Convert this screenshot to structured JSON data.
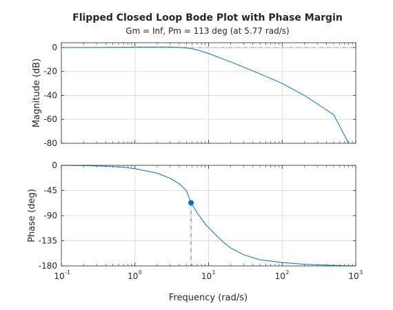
{
  "chart_data": {
    "type": "line",
    "title": "Flipped Closed Loop Bode Plot with Phase Margin",
    "subtitle": "Gm = Inf,  Pm = 113 deg (at 5.77 rad/s)",
    "xlabel": "Frequency (rad/s)",
    "xscale": "log",
    "xlim": [
      0.1,
      1000
    ],
    "x_tick_bases": [
      "10",
      "10",
      "10",
      "10",
      "10"
    ],
    "x_tick_exponents": [
      "-1",
      "0",
      "1",
      "2",
      "3"
    ],
    "x_tick_values": [
      0.1,
      1,
      10,
      100,
      1000
    ],
    "grid": true,
    "line_color": "#0072BD",
    "margin_line_color": "#666666",
    "panels": [
      {
        "name": "magnitude",
        "ylabel": "Magnitude (dB)",
        "ylim": [
          -80,
          4
        ],
        "y_ticks": [
          0,
          -20,
          -40,
          -60,
          -80
        ],
        "y_tick_labels": [
          "0",
          "-20",
          "-40",
          "-60",
          "-80"
        ],
        "series": {
          "x": [
            0.1,
            0.3,
            0.6,
            1,
            2,
            3,
            4,
            5,
            5.77,
            7,
            10,
            20,
            50,
            100,
            200,
            500,
            800
          ],
          "y": [
            0,
            0.05,
            0.2,
            0.3,
            0.4,
            0.35,
            0.1,
            -0.4,
            -0.9,
            -2.0,
            -5.0,
            -12.0,
            -22.0,
            -30.0,
            -40.0,
            -56.0,
            -80.0
          ]
        },
        "reference_line_y": 0
      },
      {
        "name": "phase",
        "ylabel": "Phase (deg)",
        "ylim": [
          -180,
          0
        ],
        "y_ticks": [
          0,
          -45,
          -90,
          -135,
          -180
        ],
        "y_tick_labels": [
          "0",
          "-45",
          "-90",
          "-135",
          "-180"
        ],
        "series": {
          "x": [
            0.1,
            0.2,
            0.4,
            0.7,
            1,
            2,
            3,
            4,
            5,
            5.77,
            7,
            9,
            12,
            16,
            20,
            30,
            50,
            100,
            200,
            500,
            1000
          ],
          "y": [
            0,
            -0.5,
            -1.5,
            -3.5,
            -6,
            -14,
            -23,
            -33,
            -45,
            -67,
            -85,
            -105,
            -122,
            -138,
            -148,
            -160,
            -169,
            -174,
            -177,
            -179,
            -180
          ]
        },
        "margin_marker": {
          "x": 5.77,
          "y": -67
        }
      }
    ]
  }
}
